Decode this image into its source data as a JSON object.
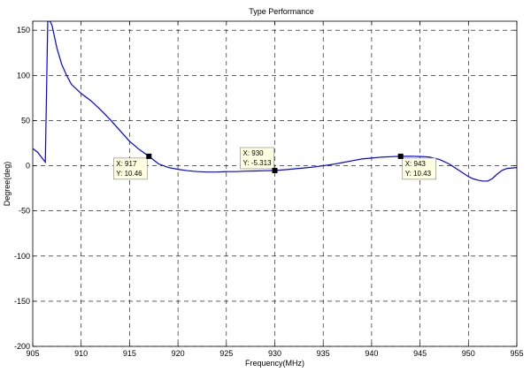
{
  "chart_data": {
    "type": "line",
    "title": "Type Performance",
    "xlabel": "Frequency(MHz)",
    "ylabel": "Degree(deg)",
    "xlim": [
      905,
      955
    ],
    "ylim": [
      -200,
      160
    ],
    "xticks": [
      905,
      910,
      915,
      920,
      925,
      930,
      935,
      940,
      945,
      950,
      955
    ],
    "yticks": [
      -200,
      -150,
      -100,
      -50,
      0,
      50,
      100,
      150
    ],
    "grid": true,
    "grid_style": "dashed",
    "colors": {
      "series": "#0000ff",
      "tip_bg": "#ffffe1",
      "tip_border": "#808080"
    },
    "series": [
      {
        "x": [
          905,
          905.5,
          906,
          906.3,
          906.55,
          906.8,
          907,
          907.5,
          908,
          908.5,
          909,
          910,
          911,
          912,
          913,
          914,
          915,
          916,
          917,
          918,
          919,
          920,
          921,
          922,
          923,
          924,
          925,
          926,
          927,
          928,
          929,
          930,
          931,
          932,
          933,
          934,
          935,
          936,
          937,
          938,
          939,
          940,
          941,
          942,
          943,
          944,
          945,
          945.5,
          946,
          947,
          948,
          949,
          950,
          950.5,
          951,
          951.5,
          952,
          952.5,
          953,
          953.5,
          954,
          955
        ],
        "y": [
          19,
          15,
          8,
          4,
          160,
          160,
          155,
          130,
          112,
          100,
          90,
          80,
          72,
          62,
          51,
          39,
          27,
          18,
          10.46,
          2,
          -2,
          -4,
          -5.5,
          -6.5,
          -7,
          -7,
          -6.5,
          -6.5,
          -6,
          -5.8,
          -5.5,
          -5.313,
          -4.5,
          -3.5,
          -2.5,
          -1.5,
          0,
          1.5,
          3.5,
          5.5,
          7.5,
          8.5,
          9.5,
          10,
          10.43,
          10.5,
          10.2,
          10,
          9.5,
          7,
          2,
          -5,
          -12,
          -14.5,
          -16,
          -17,
          -17,
          -14,
          -9,
          -5,
          -3,
          -2
        ]
      }
    ],
    "datatips": [
      {
        "x_text": "X: 917",
        "y_text": "Y: 10.46",
        "x": 917,
        "y": 10.46,
        "side": "lower-left"
      },
      {
        "x_text": "X: 930",
        "y_text": "Y: -5.313",
        "x": 930,
        "y": -5.313,
        "side": "upper-left"
      },
      {
        "x_text": "X: 943",
        "y_text": "Y: 10.43",
        "x": 943,
        "y": 10.43,
        "side": "lower-right"
      }
    ]
  }
}
